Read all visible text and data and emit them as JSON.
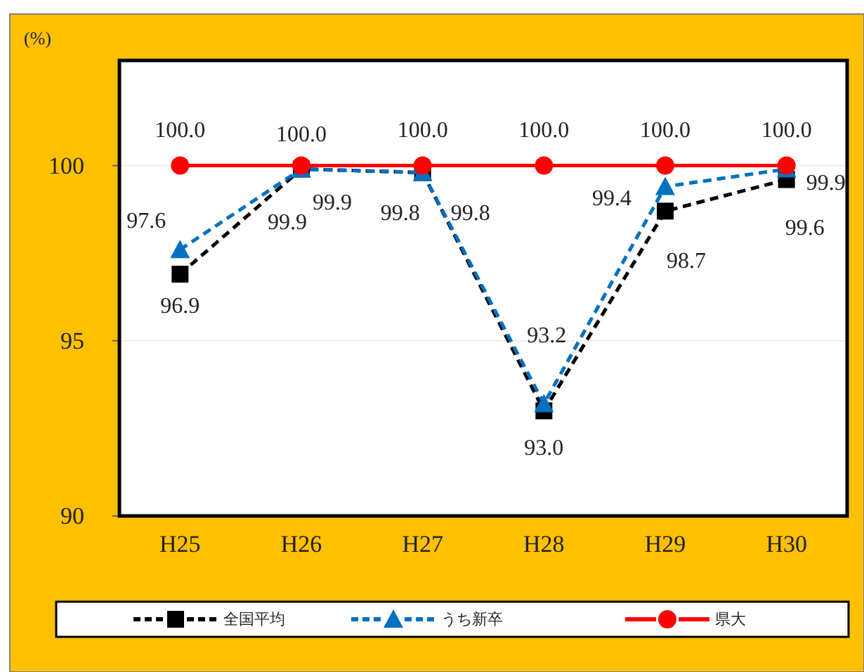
{
  "chart_data": {
    "type": "line",
    "ylabel": "(%)",
    "categories": [
      "H25",
      "H26",
      "H27",
      "H28",
      "H29",
      "H30"
    ],
    "series": [
      {
        "name": "全国平均",
        "color": "#000000",
        "values": [
          96.9,
          99.9,
          99.8,
          93.0,
          98.7,
          99.6
        ],
        "value_labels": [
          "96.9",
          "99.9",
          "99.8",
          "93.0",
          "98.7",
          "99.6"
        ],
        "marker": "square",
        "line_style": "dashed"
      },
      {
        "name": "うち新卒",
        "color": "#0070c0",
        "values": [
          97.6,
          99.9,
          99.8,
          93.2,
          99.4,
          99.9
        ],
        "value_labels": [
          "97.6",
          "99.9",
          "99.8",
          "93.2",
          "99.4",
          "99.9"
        ],
        "marker": "triangle",
        "line_style": "dashed"
      },
      {
        "name": "県大",
        "color": "#ff0000",
        "values": [
          100.0,
          100.0,
          100.0,
          100.0,
          100.0,
          100.0
        ],
        "value_labels": [
          "100.0",
          "100.0",
          "100.0",
          "100.0",
          "100.0",
          "100.0"
        ],
        "marker": "circle",
        "line_style": "solid"
      }
    ],
    "ylim": [
      90,
      103
    ],
    "yticks": [
      90,
      95,
      100
    ],
    "grid": "y",
    "legend": "bottom"
  }
}
